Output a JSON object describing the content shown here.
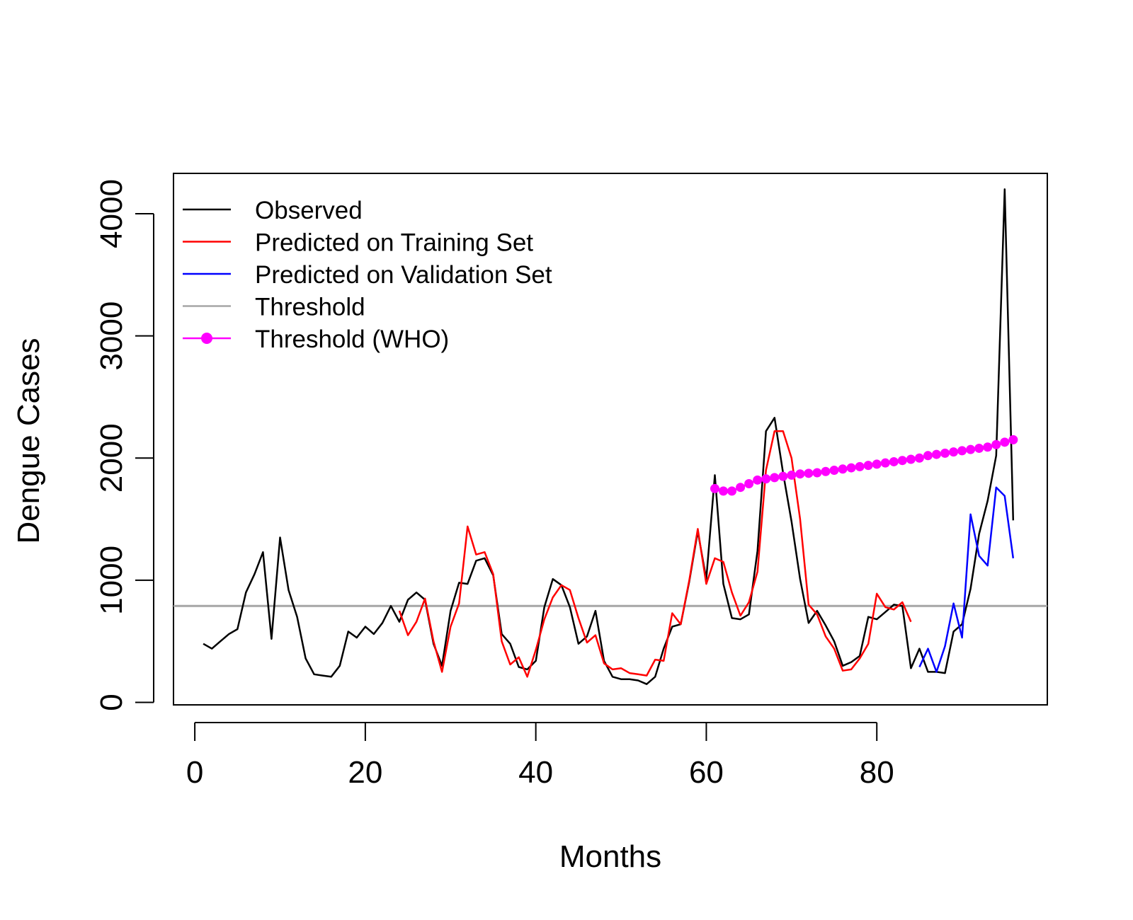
{
  "chart_data": {
    "type": "line",
    "title": "",
    "xlabel": "Months",
    "ylabel": "Dengue Cases",
    "xlim": [
      -2.5,
      100
    ],
    "ylim": [
      -20,
      4330
    ],
    "x_ticks": [
      0,
      20,
      40,
      60,
      80
    ],
    "y_ticks": [
      0,
      1000,
      2000,
      3000,
      4000
    ],
    "x_tick_labels": [
      "0",
      "20",
      "40",
      "60",
      "80"
    ],
    "y_tick_labels": [
      "0",
      "1000",
      "2000",
      "3000",
      "4000"
    ],
    "grid": false,
    "legend_position": "top-left",
    "threshold": 790,
    "series": [
      {
        "name": "Observed",
        "color": "#000000",
        "x": [
          1,
          2,
          3,
          4,
          5,
          6,
          7,
          8,
          9,
          10,
          11,
          12,
          13,
          14,
          15,
          16,
          17,
          18,
          19,
          20,
          21,
          22,
          23,
          24,
          25,
          26,
          27,
          28,
          29,
          30,
          31,
          32,
          33,
          34,
          35,
          36,
          37,
          38,
          39,
          40,
          41,
          42,
          43,
          44,
          45,
          46,
          47,
          48,
          49,
          50,
          51,
          52,
          53,
          54,
          55,
          56,
          57,
          58,
          59,
          60,
          61,
          62,
          63,
          64,
          65,
          66,
          67,
          68,
          69,
          70,
          71,
          72,
          73,
          74,
          75,
          76,
          77,
          78,
          79,
          80,
          81,
          82,
          83,
          84,
          85,
          86,
          87,
          88,
          89,
          90,
          91,
          92,
          93,
          94,
          95,
          96
        ],
        "values": [
          480,
          440,
          500,
          560,
          600,
          900,
          1050,
          1230,
          520,
          1350,
          920,
          700,
          360,
          230,
          220,
          210,
          300,
          580,
          530,
          620,
          560,
          650,
          790,
          660,
          840,
          900,
          840,
          480,
          300,
          750,
          980,
          970,
          1160,
          1180,
          1040,
          560,
          480,
          290,
          270,
          340,
          780,
          1010,
          960,
          780,
          480,
          540,
          750,
          340,
          210,
          190,
          190,
          180,
          150,
          210,
          440,
          620,
          640,
          990,
          1400,
          1010,
          1860,
          970,
          690,
          680,
          720,
          1240,
          2220,
          2330,
          1880,
          1480,
          1010,
          650,
          750,
          630,
          500,
          300,
          330,
          380,
          700,
          680,
          740,
          800,
          790,
          280,
          440,
          250,
          250,
          240,
          580,
          640,
          930,
          1380,
          1650,
          2020,
          4200,
          1490
        ]
      },
      {
        "name": "Predicted on Training Set",
        "color": "#ff0000",
        "x": [
          24,
          25,
          26,
          27,
          28,
          29,
          30,
          31,
          32,
          33,
          34,
          35,
          36,
          37,
          38,
          39,
          40,
          41,
          42,
          43,
          44,
          45,
          46,
          47,
          48,
          49,
          50,
          51,
          52,
          53,
          54,
          55,
          56,
          57,
          58,
          59,
          60,
          61,
          62,
          63,
          64,
          65,
          66,
          67,
          68,
          69,
          70,
          71,
          72,
          73,
          74,
          75,
          76,
          77,
          78,
          79,
          80,
          81,
          82,
          83,
          84
        ],
        "values": [
          750,
          550,
          660,
          850,
          500,
          250,
          620,
          810,
          1440,
          1210,
          1230,
          1050,
          500,
          310,
          370,
          210,
          430,
          680,
          860,
          960,
          920,
          690,
          490,
          550,
          320,
          270,
          280,
          240,
          230,
          220,
          350,
          340,
          730,
          640,
          1000,
          1420,
          970,
          1180,
          1150,
          900,
          710,
          820,
          1070,
          1900,
          2220,
          2220,
          2000,
          1500,
          800,
          720,
          540,
          440,
          260,
          270,
          360,
          480,
          890,
          780,
          760,
          820,
          660
        ]
      },
      {
        "name": "Predicted on Validation Set",
        "color": "#0000ff",
        "x": [
          85,
          86,
          87,
          88,
          89,
          90,
          91,
          92,
          93,
          94,
          95,
          96
        ],
        "values": [
          290,
          440,
          250,
          460,
          810,
          530,
          1540,
          1200,
          1120,
          1760,
          1690,
          1180
        ]
      },
      {
        "name": "Threshold",
        "color": "#a6a6a6",
        "x": [
          -2.5,
          100
        ],
        "values": [
          790,
          790
        ]
      },
      {
        "name": "Threshold (WHO)",
        "color": "#ff00ff",
        "x": [
          61,
          62,
          63,
          64,
          65,
          66,
          67,
          68,
          69,
          70,
          71,
          72,
          73,
          74,
          75,
          76,
          77,
          78,
          79,
          80,
          81,
          82,
          83,
          84,
          85,
          86,
          87,
          88,
          89,
          90,
          91,
          92,
          93,
          94,
          95,
          96
        ],
        "values": [
          1750,
          1730,
          1730,
          1760,
          1790,
          1820,
          1830,
          1840,
          1850,
          1860,
          1870,
          1875,
          1880,
          1890,
          1900,
          1910,
          1920,
          1930,
          1940,
          1950,
          1960,
          1970,
          1980,
          1990,
          2000,
          2020,
          2030,
          2040,
          2050,
          2060,
          2070,
          2080,
          2090,
          2110,
          2130,
          2150
        ]
      }
    ]
  }
}
